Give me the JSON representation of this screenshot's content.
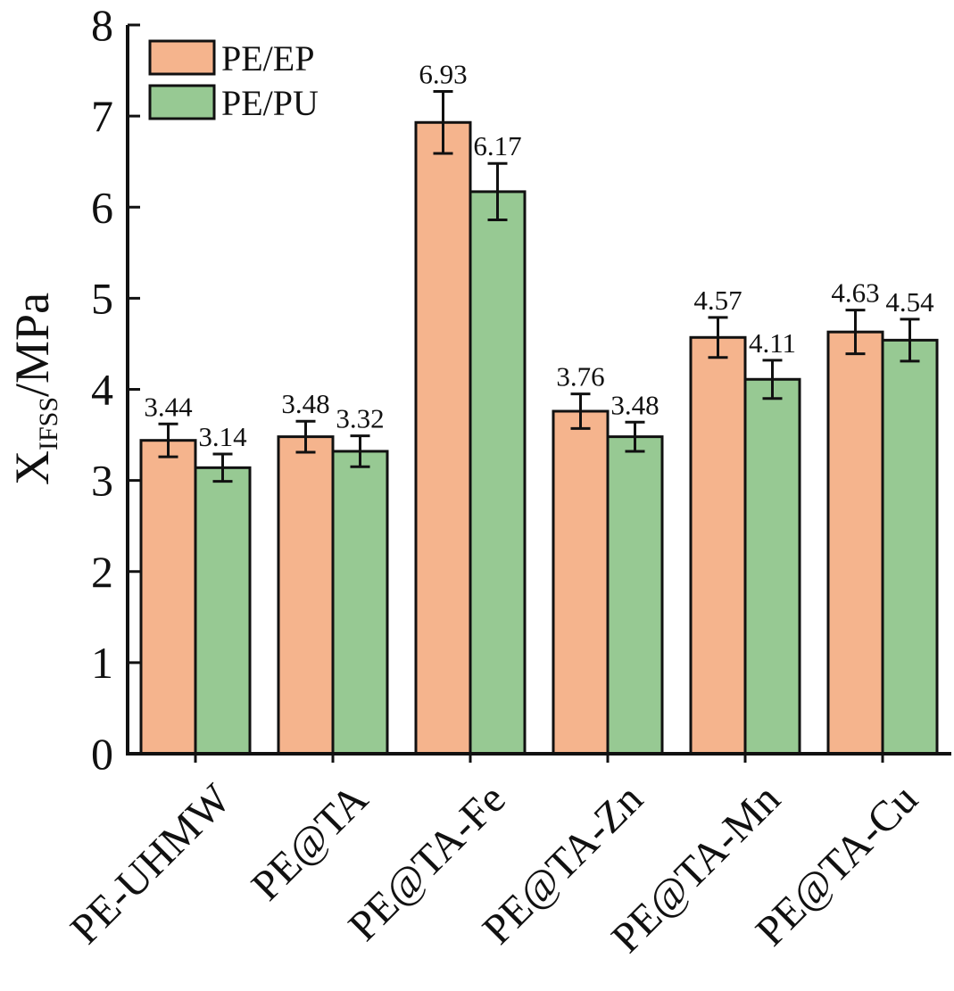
{
  "chart_data": {
    "type": "bar",
    "title": "",
    "xlabel": "",
    "ylabel": {
      "main": "X",
      "subscript": "IFSS",
      "unit": "/MPa"
    },
    "ylim": [
      0,
      8
    ],
    "yticks": [
      0,
      1,
      2,
      3,
      4,
      5,
      6,
      7,
      8
    ],
    "categories": [
      "PE-UHMW",
      "PE@TA",
      "PE@TA-Fe",
      "PE@TA-Zn",
      "PE@TA-Mn",
      "PE@TA-Cu"
    ],
    "series": [
      {
        "name": "PE/EP",
        "color": "#f5b48d",
        "values": [
          3.44,
          3.48,
          6.93,
          3.76,
          4.57,
          4.63
        ],
        "errors": [
          0.18,
          0.17,
          0.34,
          0.19,
          0.22,
          0.24
        ],
        "labels": [
          "3.44",
          "3.48",
          "6.93",
          "3.76",
          "4.57",
          "4.63"
        ]
      },
      {
        "name": "PE/PU",
        "color": "#97c993",
        "values": [
          3.14,
          3.32,
          6.17,
          3.48,
          4.11,
          4.54
        ],
        "errors": [
          0.15,
          0.17,
          0.31,
          0.16,
          0.21,
          0.23
        ],
        "labels": [
          "3.14",
          "3.32",
          "6.17",
          "3.48",
          "4.11",
          "4.54"
        ]
      }
    ],
    "legend_position": "top-left",
    "grid": false,
    "error_bars": true
  }
}
